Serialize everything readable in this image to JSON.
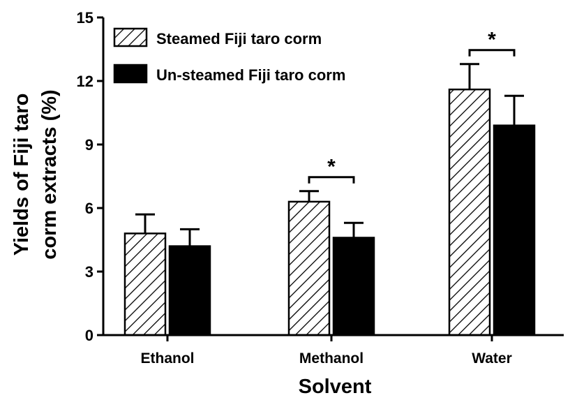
{
  "chart_data": {
    "type": "bar",
    "xlabel": "Solvent",
    "ylabel_lines": [
      "Yields of Fiji taro",
      "corm extracts (%)"
    ],
    "categories": [
      "Ethanol",
      "Methanol",
      "Water"
    ],
    "ylim": [
      0,
      15
    ],
    "yticks": [
      0,
      3,
      6,
      9,
      12,
      15
    ],
    "grid": false,
    "legend_position": "top-left",
    "series": [
      {
        "name": "Steamed Fiji taro corm",
        "pattern": "diagonal-hatch",
        "values": [
          4.8,
          6.3,
          11.6
        ],
        "errors": [
          0.9,
          0.5,
          1.2
        ]
      },
      {
        "name": "Un-steamed Fiji taro corm",
        "pattern": "solid-black",
        "values": [
          4.2,
          4.6,
          9.9
        ],
        "errors": [
          0.8,
          0.7,
          1.4
        ]
      }
    ],
    "significance": [
      {
        "category_index": 1,
        "label": "*"
      },
      {
        "category_index": 2,
        "label": "*"
      }
    ]
  },
  "colors": {
    "axis": "#000000",
    "bar_outline": "#000000",
    "solid_fill": "#000000",
    "hatch_background": "#ffffff"
  }
}
